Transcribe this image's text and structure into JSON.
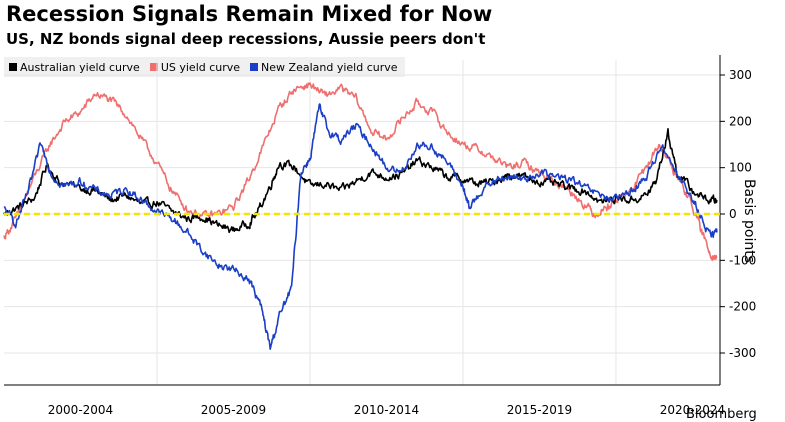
{
  "chart_data": {
    "type": "line",
    "title": "Recession Signals Remain Mixed for Now",
    "subtitle": "US, NZ bonds signal deep recessions, Aussie peers don't",
    "ylabel": "Basis points",
    "xlabel": "",
    "source": "Bloomberg",
    "ylim": [
      -350,
      350
    ],
    "xlim": [
      2000,
      2023.4
    ],
    "yticks": [
      300,
      200,
      100,
      0,
      -100,
      -200,
      -300
    ],
    "xtick_labels": [
      "2000-2004",
      "2005-2009",
      "2010-2014",
      "2015-2019",
      "2020-2024"
    ],
    "xtick_centers": [
      2002.5,
      2007.5,
      2012.5,
      2017.5,
      2022.5
    ],
    "legend_position": "top-left",
    "zero_line": true,
    "series": [
      {
        "name": "Australian yield curve",
        "color": "#000000",
        "points": [
          [
            2000,
            0
          ],
          [
            2000.5,
            15
          ],
          [
            2001,
            35
          ],
          [
            2001.4,
            105
          ],
          [
            2001.8,
            70
          ],
          [
            2002.5,
            55
          ],
          [
            2003,
            50
          ],
          [
            2003.5,
            30
          ],
          [
            2004,
            40
          ],
          [
            2004.5,
            20
          ],
          [
            2005,
            25
          ],
          [
            2005.5,
            5
          ],
          [
            2006,
            -10
          ],
          [
            2006.5,
            -5
          ],
          [
            2007,
            -25
          ],
          [
            2007.5,
            -35
          ],
          [
            2008,
            -20
          ],
          [
            2008.3,
            5
          ],
          [
            2008.7,
            60
          ],
          [
            2009,
            110
          ],
          [
            2009.5,
            100
          ],
          [
            2010,
            60
          ],
          [
            2010.5,
            65
          ],
          [
            2011,
            50
          ],
          [
            2011.5,
            70
          ],
          [
            2012,
            90
          ],
          [
            2012.5,
            80
          ],
          [
            2013,
            85
          ],
          [
            2013.5,
            115
          ],
          [
            2014,
            100
          ],
          [
            2014.5,
            80
          ],
          [
            2015,
            75
          ],
          [
            2015.5,
            65
          ],
          [
            2016,
            70
          ],
          [
            2016.5,
            85
          ],
          [
            2017,
            80
          ],
          [
            2017.5,
            70
          ],
          [
            2018,
            65
          ],
          [
            2018.5,
            55
          ],
          [
            2019,
            50
          ],
          [
            2019.5,
            25
          ],
          [
            2020,
            35
          ],
          [
            2020.5,
            30
          ],
          [
            2021,
            40
          ],
          [
            2021.3,
            70
          ],
          [
            2021.7,
            175
          ],
          [
            2022,
            90
          ],
          [
            2022.5,
            50
          ],
          [
            2023,
            30
          ],
          [
            2023.3,
            30
          ]
        ]
      },
      {
        "name": "US yield curve",
        "color": "#ef6f6f",
        "points": [
          [
            2000,
            -50
          ],
          [
            2000.4,
            -10
          ],
          [
            2001,
            80
          ],
          [
            2001.5,
            150
          ],
          [
            2002,
            200
          ],
          [
            2002.5,
            220
          ],
          [
            2003,
            260
          ],
          [
            2003.5,
            245
          ],
          [
            2004,
            215
          ],
          [
            2004.5,
            160
          ],
          [
            2005,
            110
          ],
          [
            2005.5,
            50
          ],
          [
            2006,
            10
          ],
          [
            2006.5,
            -5
          ],
          [
            2007,
            0
          ],
          [
            2007.5,
            15
          ],
          [
            2008,
            75
          ],
          [
            2008.5,
            150
          ],
          [
            2009,
            230
          ],
          [
            2009.5,
            270
          ],
          [
            2010,
            280
          ],
          [
            2010.5,
            255
          ],
          [
            2011,
            270
          ],
          [
            2011.5,
            250
          ],
          [
            2012,
            180
          ],
          [
            2012.5,
            160
          ],
          [
            2013,
            205
          ],
          [
            2013.5,
            240
          ],
          [
            2014,
            220
          ],
          [
            2014.5,
            175
          ],
          [
            2015,
            150
          ],
          [
            2015.5,
            140
          ],
          [
            2016,
            120
          ],
          [
            2016.5,
            100
          ],
          [
            2017,
            110
          ],
          [
            2017.5,
            90
          ],
          [
            2018,
            70
          ],
          [
            2018.5,
            50
          ],
          [
            2019,
            20
          ],
          [
            2019.3,
            0
          ],
          [
            2019.7,
            15
          ],
          [
            2020,
            30
          ],
          [
            2020.5,
            50
          ],
          [
            2021,
            100
          ],
          [
            2021.4,
            150
          ],
          [
            2021.7,
            120
          ],
          [
            2022,
            80
          ],
          [
            2022.5,
            20
          ],
          [
            2022.8,
            -40
          ],
          [
            2023.1,
            -85
          ],
          [
            2023.3,
            -95
          ]
        ]
      },
      {
        "name": "New Zealand yield curve",
        "color": "#1a3fc6",
        "points": [
          [
            2000,
            10
          ],
          [
            2000.4,
            -20
          ],
          [
            2000.8,
            50
          ],
          [
            2001.2,
            150
          ],
          [
            2001.6,
            80
          ],
          [
            2002,
            60
          ],
          [
            2002.5,
            70
          ],
          [
            2003,
            50
          ],
          [
            2003.5,
            40
          ],
          [
            2004,
            55
          ],
          [
            2004.5,
            30
          ],
          [
            2005,
            5
          ],
          [
            2005.5,
            -10
          ],
          [
            2006,
            -40
          ],
          [
            2006.5,
            -80
          ],
          [
            2007,
            -110
          ],
          [
            2007.5,
            -120
          ],
          [
            2008,
            -140
          ],
          [
            2008.4,
            -200
          ],
          [
            2008.7,
            -290
          ],
          [
            2009,
            -220
          ],
          [
            2009.4,
            -160
          ],
          [
            2009.7,
            90
          ],
          [
            2010,
            120
          ],
          [
            2010.3,
            230
          ],
          [
            2010.6,
            180
          ],
          [
            2011,
            160
          ],
          [
            2011.5,
            190
          ],
          [
            2012,
            150
          ],
          [
            2012.5,
            100
          ],
          [
            2013,
            90
          ],
          [
            2013.5,
            150
          ],
          [
            2014,
            145
          ],
          [
            2014.5,
            110
          ],
          [
            2015,
            60
          ],
          [
            2015.2,
            10
          ],
          [
            2015.5,
            45
          ],
          [
            2016,
            70
          ],
          [
            2016.5,
            80
          ],
          [
            2017,
            75
          ],
          [
            2017.5,
            90
          ],
          [
            2018,
            80
          ],
          [
            2018.5,
            75
          ],
          [
            2019,
            55
          ],
          [
            2019.5,
            40
          ],
          [
            2020,
            30
          ],
          [
            2020.5,
            50
          ],
          [
            2021,
            80
          ],
          [
            2021.5,
            150
          ],
          [
            2022,
            90
          ],
          [
            2022.5,
            30
          ],
          [
            2022.8,
            -10
          ],
          [
            2023.1,
            -50
          ],
          [
            2023.3,
            -40
          ]
        ]
      }
    ]
  }
}
